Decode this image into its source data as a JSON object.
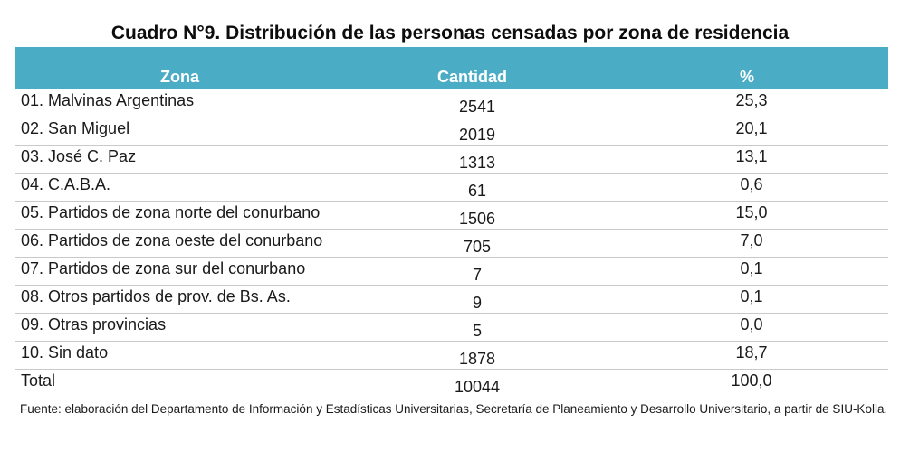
{
  "title": "Cuadro N°9. Distribución de las personas censadas por zona de residencia",
  "table": {
    "columns": [
      "Zona",
      "Cantidad",
      "%"
    ],
    "rows": [
      {
        "zona": "01. Malvinas Argentinas",
        "cantidad": "2541",
        "pct": "25,3"
      },
      {
        "zona": "02. San Miguel",
        "cantidad": "2019",
        "pct": "20,1"
      },
      {
        "zona": "03. José C. Paz",
        "cantidad": "1313",
        "pct": "13,1"
      },
      {
        "zona": "04. C.A.B.A.",
        "cantidad": "61",
        "pct": "0,6"
      },
      {
        "zona": "05. Partidos de zona norte del conurbano",
        "cantidad": "1506",
        "pct": "15,0"
      },
      {
        "zona": "06. Partidos de zona oeste del conurbano",
        "cantidad": "705",
        "pct": "7,0"
      },
      {
        "zona": "07. Partidos de zona sur del conurbano",
        "cantidad": "7",
        "pct": "0,1"
      },
      {
        "zona": "08. Otros partidos de prov. de Bs. As.",
        "cantidad": "9",
        "pct": "0,1"
      },
      {
        "zona": "09. Otras provincias",
        "cantidad": "5",
        "pct": "0,0"
      },
      {
        "zona": "10. Sin dato",
        "cantidad": "1878",
        "pct": "18,7"
      }
    ],
    "total": {
      "zona": "Total",
      "cantidad": "10044",
      "pct": "100,0"
    }
  },
  "source": "Fuente: elaboración del Departamento de Información y Estadísticas Universitarias, Secretaría de Planeamiento y Desarrollo Universitario, a partir de  SIU-Kolla.",
  "colors": {
    "header_bg": "#4bacc6",
    "header_text": "#ffffff",
    "row_divider": "#c9c9c9"
  }
}
